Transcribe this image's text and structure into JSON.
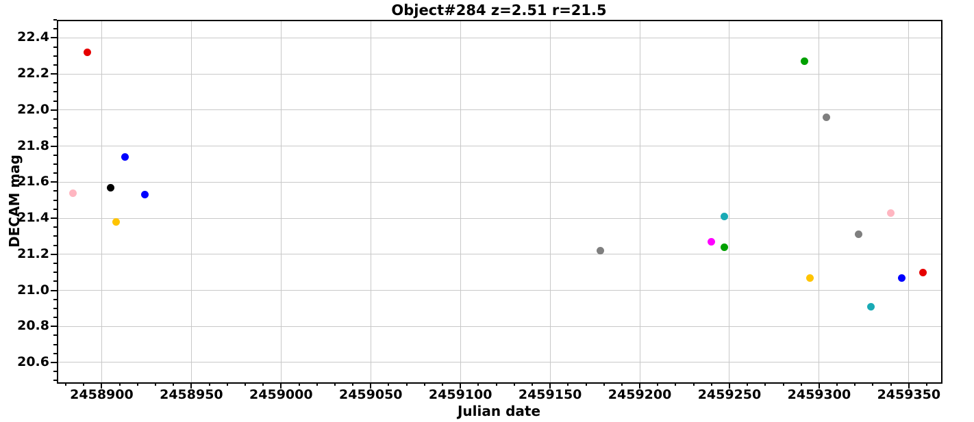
{
  "chart_data": {
    "type": "scatter",
    "title": "Object#284 z=2.51 r=21.5",
    "xlabel": "Julian date",
    "ylabel": "DECAM mag",
    "xlim": [
      2458875,
      2459368
    ],
    "ylim": [
      20.49,
      22.5
    ],
    "xticks": [
      2458900,
      2458950,
      2459000,
      2459050,
      2459100,
      2459150,
      2459200,
      2459250,
      2459300,
      2459350
    ],
    "yticks": [
      20.6,
      20.8,
      21.0,
      21.2,
      21.4,
      21.6,
      21.8,
      22.0,
      22.2,
      22.4
    ],
    "x_minor_step": 10,
    "y_minor_step": 0.05,
    "grid": true,
    "grid_color": "#c8c8c8",
    "legend": "none",
    "background_color": "#ffffff",
    "text_color": "#000000",
    "colors": {
      "red": "#e60000",
      "pink": "#ffb6c1",
      "black": "#000000",
      "blue": "#0000ff",
      "gold": "#ffc400",
      "gray": "#7f7f7f",
      "magenta": "#ff00ff",
      "green": "#00a000",
      "cyan": "#19aab5"
    },
    "points": [
      {
        "jd": 2458892,
        "mag": 22.32,
        "color": "red"
      },
      {
        "jd": 2458884,
        "mag": 21.54,
        "color": "pink"
      },
      {
        "jd": 2458905,
        "mag": 21.57,
        "color": "black"
      },
      {
        "jd": 2458913,
        "mag": 21.74,
        "color": "blue"
      },
      {
        "jd": 2458908,
        "mag": 21.38,
        "color": "gold"
      },
      {
        "jd": 2458924,
        "mag": 21.53,
        "color": "blue"
      },
      {
        "jd": 2459178,
        "mag": 21.22,
        "color": "gray"
      },
      {
        "jd": 2459240,
        "mag": 21.27,
        "color": "magenta"
      },
      {
        "jd": 2459247,
        "mag": 21.41,
        "color": "cyan"
      },
      {
        "jd": 2459247,
        "mag": 21.24,
        "color": "green"
      },
      {
        "jd": 2459292,
        "mag": 22.27,
        "color": "green"
      },
      {
        "jd": 2459295,
        "mag": 21.07,
        "color": "gold"
      },
      {
        "jd": 2459304,
        "mag": 21.96,
        "color": "gray"
      },
      {
        "jd": 2459322,
        "mag": 21.31,
        "color": "gray"
      },
      {
        "jd": 2459329,
        "mag": 20.91,
        "color": "cyan"
      },
      {
        "jd": 2459340,
        "mag": 21.43,
        "color": "pink"
      },
      {
        "jd": 2459346,
        "mag": 21.07,
        "color": "blue"
      },
      {
        "jd": 2459358,
        "mag": 21.1,
        "color": "red"
      }
    ]
  }
}
